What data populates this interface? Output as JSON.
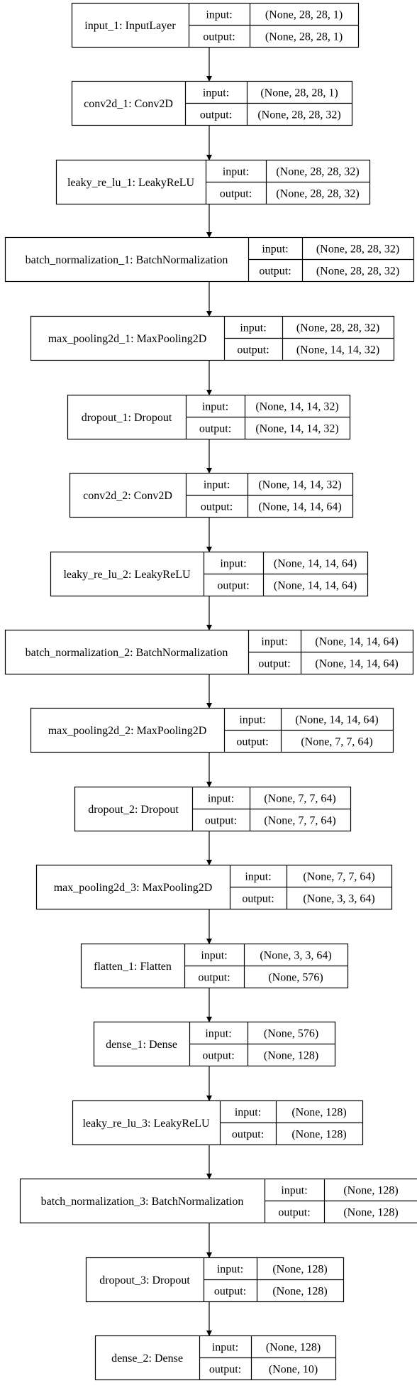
{
  "port_labels": {
    "input": "input:",
    "output": "output:"
  },
  "layers": [
    {
      "name": "input_1: InputLayer",
      "input": "(None, 28, 28, 1)",
      "output": "(None, 28, 28, 1)"
    },
    {
      "name": "conv2d_1: Conv2D",
      "input": "(None, 28, 28, 1)",
      "output": "(None, 28, 28, 32)"
    },
    {
      "name": "leaky_re_lu_1: LeakyReLU",
      "input": "(None, 28, 28, 32)",
      "output": "(None, 28, 28, 32)"
    },
    {
      "name": "batch_normalization_1: BatchNormalization",
      "input": "(None, 28, 28, 32)",
      "output": "(None, 28, 28, 32)"
    },
    {
      "name": "max_pooling2d_1: MaxPooling2D",
      "input": "(None, 28, 28, 32)",
      "output": "(None, 14, 14, 32)"
    },
    {
      "name": "dropout_1: Dropout",
      "input": "(None, 14, 14, 32)",
      "output": "(None, 14, 14, 32)"
    },
    {
      "name": "conv2d_2: Conv2D",
      "input": "(None, 14, 14, 32)",
      "output": "(None, 14, 14, 64)"
    },
    {
      "name": "leaky_re_lu_2: LeakyReLU",
      "input": "(None, 14, 14, 64)",
      "output": "(None, 14, 14, 64)"
    },
    {
      "name": "batch_normalization_2: BatchNormalization",
      "input": "(None, 14, 14, 64)",
      "output": "(None, 14, 14, 64)"
    },
    {
      "name": "max_pooling2d_2: MaxPooling2D",
      "input": "(None, 14, 14, 64)",
      "output": "(None, 7, 7, 64)"
    },
    {
      "name": "dropout_2: Dropout",
      "input": "(None, 7, 7, 64)",
      "output": "(None, 7, 7, 64)"
    },
    {
      "name": "max_pooling2d_3: MaxPooling2D",
      "input": "(None, 7, 7, 64)",
      "output": "(None, 3, 3, 64)"
    },
    {
      "name": "flatten_1: Flatten",
      "input": "(None, 3, 3, 64)",
      "output": "(None, 576)"
    },
    {
      "name": "dense_1: Dense",
      "input": "(None, 576)",
      "output": "(None, 128)"
    },
    {
      "name": "leaky_re_lu_3: LeakyReLU",
      "input": "(None, 128)",
      "output": "(None, 128)"
    },
    {
      "name": "batch_normalization_3: BatchNormalization",
      "input": "(None, 128)",
      "output": "(None, 128)"
    },
    {
      "name": "dropout_3: Dropout",
      "input": "(None, 128)",
      "output": "(None, 128)"
    },
    {
      "name": "dense_2: Dense",
      "input": "(None, 128)",
      "output": "(None, 10)"
    }
  ]
}
